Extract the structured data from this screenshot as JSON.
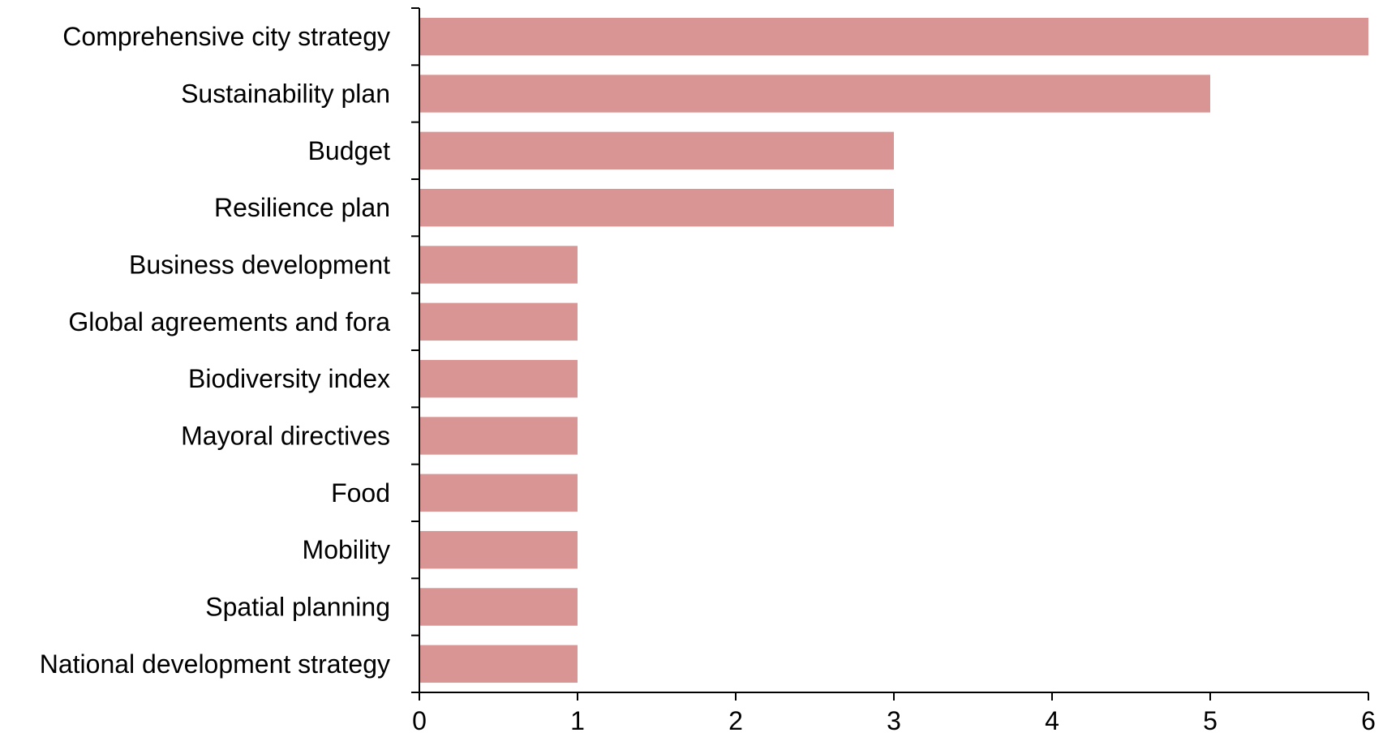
{
  "chart_data": {
    "type": "bar",
    "orientation": "horizontal",
    "title": "",
    "xlabel": "",
    "ylabel": "",
    "categories": [
      "Comprehensive city strategy",
      "Sustainability plan",
      "Budget",
      "Resilience plan",
      "Business development",
      "Global agreements and fora",
      "Biodiversity index",
      "Mayoral directives",
      "Food",
      "Mobility",
      "Spatial planning",
      "National development strategy"
    ],
    "values": [
      6,
      5,
      3,
      3,
      1,
      1,
      1,
      1,
      1,
      1,
      1,
      1
    ],
    "xlim": [
      0,
      6
    ],
    "xticks": [
      "0",
      "1",
      "2",
      "3",
      "4",
      "5",
      "6"
    ],
    "grid": false,
    "legend": "none",
    "bar_color": "#d99594",
    "axis_color": "#000000"
  }
}
